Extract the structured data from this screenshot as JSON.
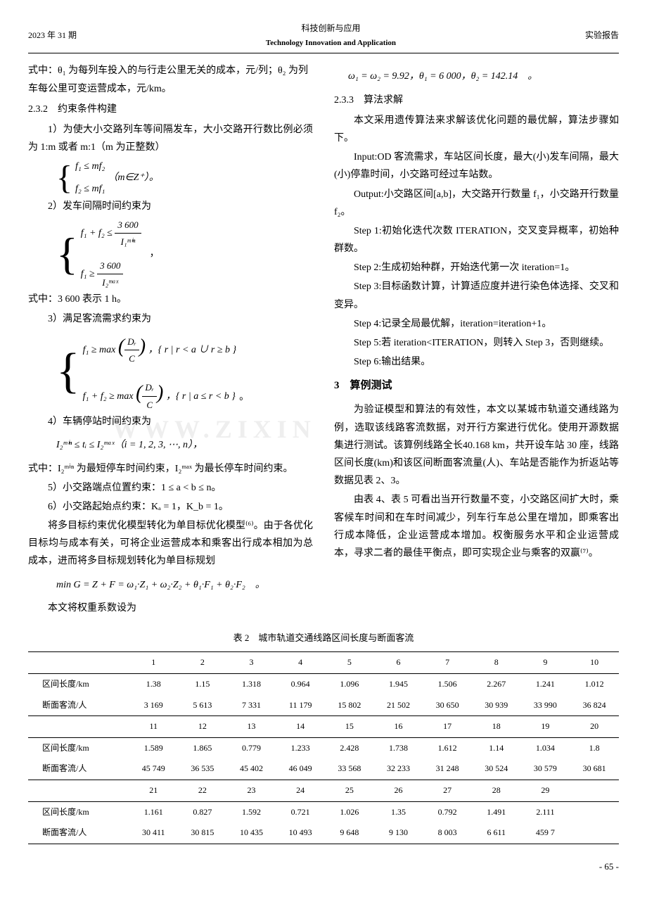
{
  "header": {
    "left": "2023 年 31 期",
    "center_cn": "科技创新与应用",
    "center_en": "Technology Innovation and Application",
    "right": "实验报告"
  },
  "left_col": {
    "p1": "式中：θ₁ 为每列车投入的与行走公里无关的成本，元/列；θ₂ 为列车每公里可变运营成本，元/km。",
    "s232": "2.3.2　约束条件构建",
    "p2": "1）为使大小交路列车等间隔发车，大小交路开行数比例必须为 1:m 或者 m:1（m 为正整数）",
    "f1a": "f₁ ≤ mf₂",
    "f1b": "f₂ ≤ mf₁",
    "f1c": "（m∈Z⁺）。",
    "p3": "2）发车间隔时间约束为",
    "f2a_left": "f₁ + f₂ ≤",
    "f2a_num": "3 600",
    "f2a_den": "I₁ᵐⁱⁿ",
    "f2b_left": "f₁ ≥",
    "f2b_num": "3 600",
    "f2b_den": "I₂ᵐᵃˣ",
    "f2_comma": "，",
    "p4": "式中：3 600 表示 1 h。",
    "p5": "3）满足客流需求约束为",
    "f3a_left": "f₁ ≥ max",
    "f3a_frac_num": "Dᵣ",
    "f3a_frac_den": "C",
    "f3a_set": "，{ r | r < a ∪ r ≥ b }",
    "f3b_left": "f₁ + f₂ ≥ max",
    "f3b_set": "，{ r | a ≤ r < b }",
    "f3_end": "。",
    "p6": "4）车辆停站时间约束为",
    "f4": "I₂ᵐⁱⁿ ≤ tᵢ ≤ I₂ᵐᵃˣ（i = 1, 2, 3, ⋯, n），",
    "p7": "式中：I₂ᵐⁱⁿ 为最短停车时间约束，I₂ᵐᵃˣ 为最长停车时间约束。",
    "p8": "5）小交路端点位置约束：1 ≤ a < b ≤ n。",
    "p9": "6）小交路起始点约束：Kₐ = 1，K_b = 1。",
    "p10": "将多目标约束优化模型转化为单目标优化模型⁽⁶⁾。由于各优化目标均与成本有关，可将企业运营成本和乘客出行成本相加为总成本，进而将多目标规划转化为单目标规划",
    "f5": "min G = Z + F = ω₁·Z₁ + ω₂·Z₂ + θ₁·F₁ + θ₂·F₂　。",
    "p11": "本文将权重系数设为"
  },
  "right_col": {
    "f6": "ω₁ = ω₂ = 9.92，θ₁ = 6 000，θ₂ = 142.14　。",
    "s233": "2.3.3　算法求解",
    "p1": "本文采用遗传算法来求解该优化问题的最优解，算法步骤如下。",
    "p2": "Input:OD 客流需求，车站区间长度，最大(小)发车间隔，最大(小)停靠时间，小交路可经过车站数。",
    "p3": "Output:小交路区间[a,b]，大交路开行数量 f₁，小交路开行数量 f₂。",
    "p4": "Step 1:初始化迭代次数 ITERATION，交叉变异概率，初始种群数。",
    "p5": "Step 2:生成初始种群，开始迭代第一次 iteration=1。",
    "p6": "Step 3:目标函数计算，计算适应度并进行染色体选择、交叉和变异。",
    "p7": "Step 4:记录全局最优解，iteration=iteration+1。",
    "p8": "Step 5:若 iteration<ITERATION，则转入 Step 3，否则继续。",
    "p9": "Step 6:输出结果。",
    "h3": "3　算例测试",
    "p10": "为验证模型和算法的有效性，本文以某城市轨道交通线路为例，选取该线路客流数据，对开行方案进行优化。使用开源数据集进行测试。该算例线路全长40.168 km，共开设车站 30 座，线路区间长度(km)和该区间断面客流量(人)、车站是否能作为折返站等数据见表 2、3。",
    "p11": "由表 4、表 5 可看出当开行数量不变，小交路区间扩大时，乘客候车时间和在车时间减少，列车行车总公里在增加，即乘客出行成本降低，企业运营成本增加。权衡服务水平和企业运营成本，寻求二者的最佳平衡点，即可实现企业与乘客的双赢⁽⁷⁾。"
  },
  "watermark": "WWW.ZIXIN",
  "table": {
    "caption": "表 2　城市轨道交通线路区间长度与断面客流",
    "row_label_length": "区间长度/km",
    "row_label_flow": "断面客流/人",
    "groups": [
      {
        "headers": [
          "1",
          "2",
          "3",
          "4",
          "5",
          "6",
          "7",
          "8",
          "9",
          "10"
        ],
        "lengths": [
          "1.38",
          "1.15",
          "1.318",
          "0.964",
          "1.096",
          "1.945",
          "1.506",
          "2.267",
          "1.241",
          "1.012"
        ],
        "flows": [
          "3 169",
          "5 613",
          "7 331",
          "11 179",
          "15 802",
          "21 502",
          "30 650",
          "30 939",
          "33 990",
          "36 824"
        ]
      },
      {
        "headers": [
          "11",
          "12",
          "13",
          "14",
          "15",
          "16",
          "17",
          "18",
          "19",
          "20"
        ],
        "lengths": [
          "1.589",
          "1.865",
          "0.779",
          "1.233",
          "2.428",
          "1.738",
          "1.612",
          "1.14",
          "1.034",
          "1.8"
        ],
        "flows": [
          "45 749",
          "36 535",
          "45 402",
          "46 049",
          "33 568",
          "32 233",
          "31 248",
          "30 524",
          "30 579",
          "30 681"
        ]
      },
      {
        "headers": [
          "21",
          "22",
          "23",
          "24",
          "25",
          "26",
          "27",
          "28",
          "29",
          ""
        ],
        "lengths": [
          "1.161",
          "0.827",
          "1.592",
          "0.721",
          "1.026",
          "1.35",
          "0.792",
          "1.491",
          "2.111",
          ""
        ],
        "flows": [
          "30 411",
          "30 815",
          "10 435",
          "10 493",
          "9 648",
          "9 130",
          "8 003",
          "6 611",
          "459 7",
          ""
        ]
      }
    ]
  },
  "page_num": "- 65 -"
}
